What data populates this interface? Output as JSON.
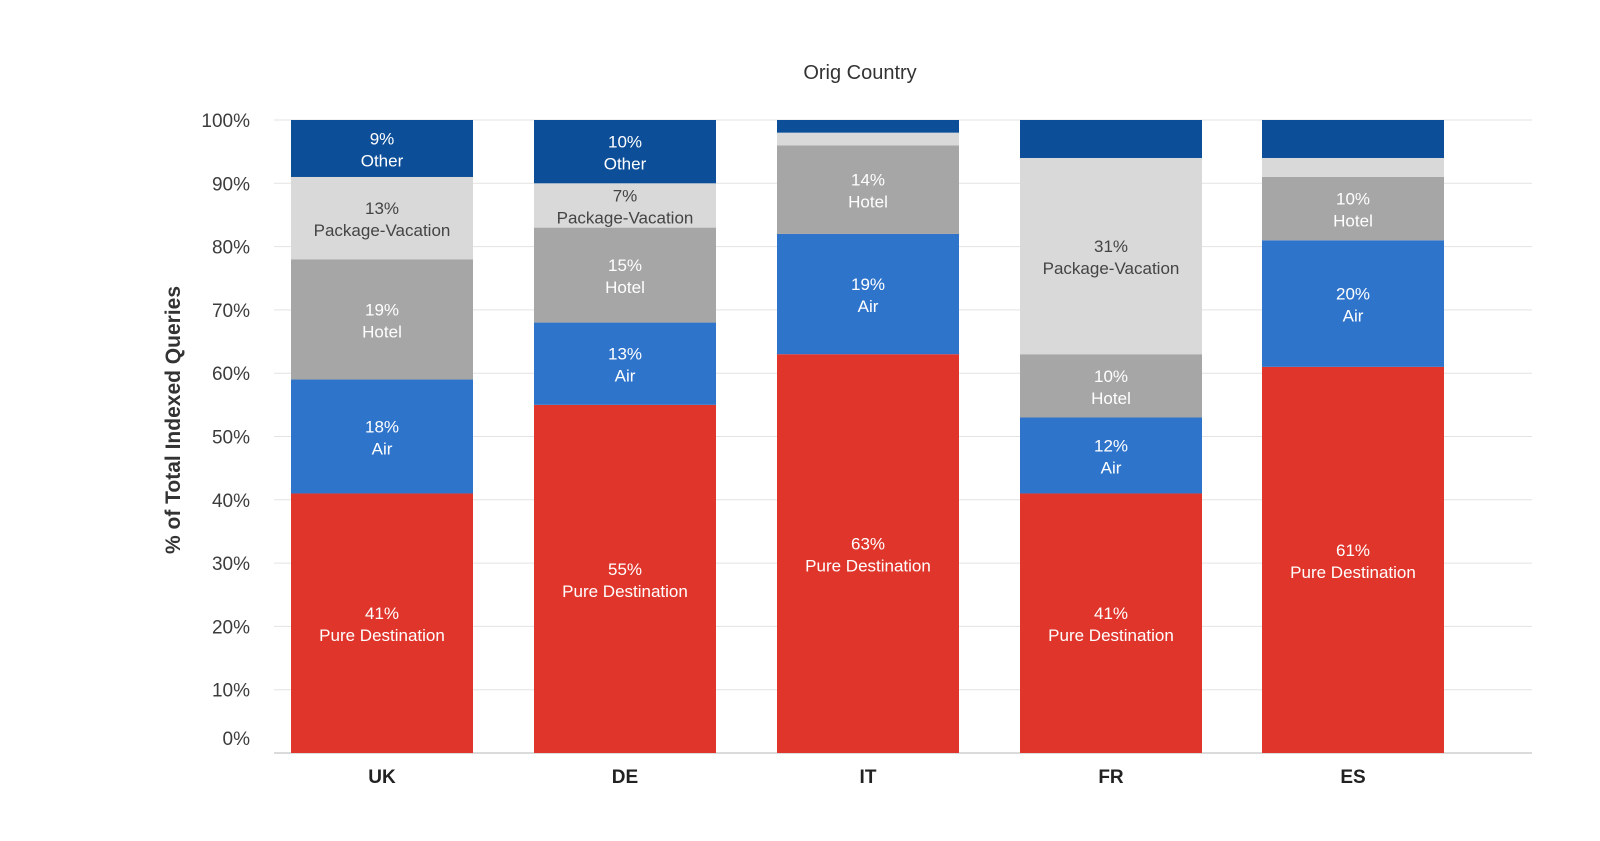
{
  "chart_data": {
    "type": "bar",
    "stacked": true,
    "title": "Orig Country",
    "ylabel": "% of Total Indexed Queries",
    "xlabel": "",
    "ylim": [
      0,
      100
    ],
    "yticks": [
      0,
      10,
      20,
      30,
      40,
      50,
      60,
      70,
      80,
      90,
      100
    ],
    "ytick_labels": [
      "0%",
      "10%",
      "20%",
      "30%",
      "40%",
      "50%",
      "60%",
      "70%",
      "80%",
      "90%",
      "100%"
    ],
    "grid": true,
    "legend": "none",
    "categories": [
      "UK",
      "DE",
      "IT",
      "FR",
      "ES"
    ],
    "series": [
      {
        "name": "Pure Destination",
        "color": "#e0352b",
        "label_color": "#ffffff",
        "values": [
          41,
          55,
          63,
          41,
          61
        ],
        "labels": [
          "41%",
          "55%",
          "63%",
          "41%",
          "61%"
        ],
        "show_name": [
          true,
          true,
          true,
          true,
          true
        ]
      },
      {
        "name": "Air",
        "color": "#2f74cb",
        "label_color": "#ffffff",
        "values": [
          18,
          13,
          19,
          12,
          20
        ],
        "labels": [
          "18%",
          "13%",
          "19%",
          "12%",
          "20%"
        ],
        "show_name": [
          true,
          true,
          true,
          true,
          true
        ]
      },
      {
        "name": "Hotel",
        "color": "#a6a6a6",
        "label_color": "#ffffff",
        "values": [
          19,
          15,
          14,
          10,
          10
        ],
        "labels": [
          "19%",
          "15%",
          "14%",
          "10%",
          "10%"
        ],
        "show_name": [
          true,
          true,
          true,
          true,
          true
        ]
      },
      {
        "name": "Package-Vacation",
        "color": "#d9d9d9",
        "label_color": "#444444",
        "values": [
          13,
          7,
          2,
          31,
          3
        ],
        "labels": [
          "13%",
          "7%",
          "",
          "31%",
          ""
        ],
        "show_name": [
          true,
          true,
          false,
          true,
          false
        ]
      },
      {
        "name": "Other",
        "color": "#0c4e98",
        "label_color": "#ffffff",
        "values": [
          9,
          10,
          2,
          6,
          6
        ],
        "labels": [
          "9%",
          "10%",
          "",
          "",
          ""
        ],
        "show_name": [
          true,
          true,
          false,
          false,
          false
        ]
      }
    ],
    "colors": {
      "grid": "#e3e3e3",
      "axis": "#cfcfcf"
    }
  }
}
